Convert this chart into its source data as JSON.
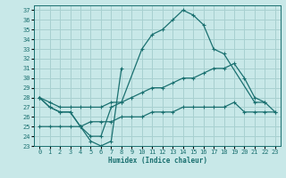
{
  "xlabel": "Humidex (Indice chaleur)",
  "background_color": "#c8e8e8",
  "grid_color": "#a8d0d0",
  "line_color": "#1a7070",
  "xlim": [
    -0.5,
    23.5
  ],
  "ylim": [
    23,
    37.5
  ],
  "yticks": [
    23,
    24,
    25,
    26,
    27,
    28,
    29,
    30,
    31,
    32,
    33,
    34,
    35,
    36,
    37
  ],
  "xticks": [
    0,
    1,
    2,
    3,
    4,
    5,
    6,
    7,
    8,
    9,
    10,
    11,
    12,
    13,
    14,
    15,
    16,
    17,
    18,
    19,
    20,
    21,
    22,
    23
  ],
  "series": [
    {
      "x": [
        0,
        1,
        2,
        3,
        4,
        5,
        6,
        7,
        8
      ],
      "y": [
        28,
        27,
        26.5,
        26.5,
        25,
        23.5,
        23,
        23.5,
        31
      ]
    },
    {
      "x": [
        0,
        1,
        2,
        3,
        4,
        5,
        6,
        7,
        8,
        10,
        11,
        12,
        13,
        14,
        15,
        16,
        17,
        18,
        21,
        22
      ],
      "y": [
        28,
        27,
        26.5,
        26.5,
        25,
        24,
        24,
        27,
        27.5,
        33,
        34.5,
        35,
        36,
        37,
        36.5,
        35.5,
        33,
        32.5,
        27.5,
        27.5
      ]
    },
    {
      "x": [
        0,
        1,
        2,
        3,
        4,
        5,
        6,
        7,
        8,
        9,
        10,
        11,
        12,
        13,
        14,
        15,
        16,
        17,
        18,
        19,
        20,
        21,
        22,
        23
      ],
      "y": [
        28,
        27.5,
        27,
        27,
        27,
        27,
        27,
        27.5,
        27.5,
        28,
        28.5,
        29,
        29,
        29.5,
        30,
        30,
        30.5,
        31,
        31,
        31.5,
        30,
        28,
        27.5,
        26.5
      ]
    },
    {
      "x": [
        0,
        1,
        2,
        3,
        4,
        5,
        6,
        7,
        8,
        9,
        10,
        11,
        12,
        13,
        14,
        15,
        16,
        17,
        18,
        19,
        20,
        21,
        22,
        23
      ],
      "y": [
        25,
        25,
        25,
        25,
        25,
        25.5,
        25.5,
        25.5,
        26,
        26,
        26,
        26.5,
        26.5,
        26.5,
        27,
        27,
        27,
        27,
        27,
        27.5,
        26.5,
        26.5,
        26.5,
        26.5
      ]
    }
  ]
}
